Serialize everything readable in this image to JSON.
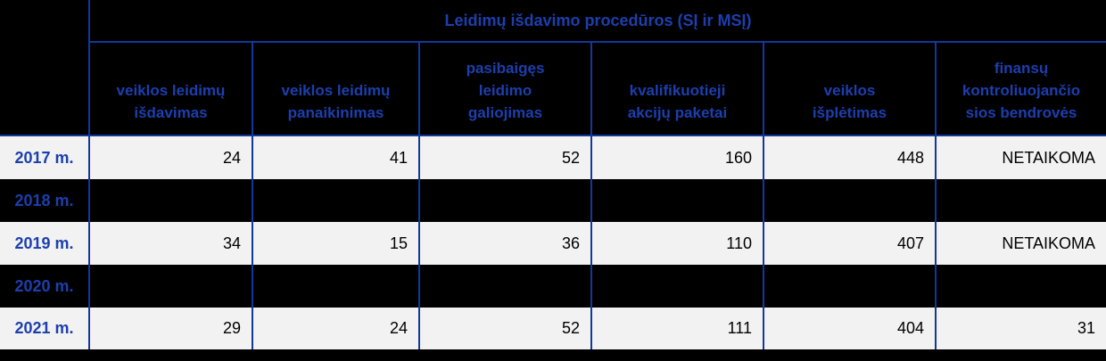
{
  "colors": {
    "text_blue": "#1c3fae",
    "border_navy": "#12389b",
    "row_light_bg": "#f2f2f2",
    "row_dark_bg": "#000000",
    "value_text": "#000000"
  },
  "table": {
    "title": "Leidimų išdavimo procedūros (SĮ ir MSĮ)",
    "columns": [
      "veiklos leidimų\nišdavimas",
      "veiklos leidimų\npanaikinimas",
      "pasibaigęs\nleidimo\ngaliojimas",
      "kvalifikuotieji\nakcijų paketai",
      "veiklos\nišplėtimas",
      "finansų\nkontroliuojančio\nsios bendrovės"
    ],
    "rows": [
      {
        "year": "2017 m.",
        "shaded": false,
        "values": [
          "24",
          "41",
          "52",
          "160",
          "448",
          "NETAIKOMA"
        ]
      },
      {
        "year": "2018 m.",
        "shaded": true,
        "values": [
          "",
          "",
          "",
          "",
          "",
          ""
        ]
      },
      {
        "year": "2019 m.",
        "shaded": false,
        "values": [
          "34",
          "15",
          "36",
          "110",
          "407",
          "NETAIKOMA"
        ]
      },
      {
        "year": "2020 m.",
        "shaded": true,
        "values": [
          "",
          "",
          "",
          "",
          "",
          ""
        ]
      },
      {
        "year": "2021 m.",
        "shaded": false,
        "values": [
          "29",
          "24",
          "52",
          "111",
          "404",
          "31"
        ]
      }
    ]
  },
  "chart_data": {
    "type": "table",
    "title": "Leidimų išdavimo procedūros (SĮ ir MSĮ)",
    "columns": [
      "veiklos leidimų išdavimas",
      "veiklos leidimų panaikinimas",
      "pasibaigęs leidimo galiojimas",
      "kvalifikuotieji akcijų paketai",
      "veiklos išplėtimas",
      "finansų kontroliuojančiosios bendrovės"
    ],
    "rows": [
      {
        "label": "2017 m.",
        "values": [
          24,
          41,
          52,
          160,
          448,
          "NETAIKOMA"
        ]
      },
      {
        "label": "2018 m.",
        "values": [
          null,
          null,
          null,
          null,
          null,
          null
        ],
        "note": "row blacked out"
      },
      {
        "label": "2019 m.",
        "values": [
          34,
          15,
          36,
          110,
          407,
          "NETAIKOMA"
        ]
      },
      {
        "label": "2020 m.",
        "values": [
          null,
          null,
          null,
          null,
          null,
          null
        ],
        "note": "row blacked out"
      },
      {
        "label": "2021 m.",
        "values": [
          29,
          24,
          52,
          111,
          404,
          31
        ]
      }
    ]
  }
}
